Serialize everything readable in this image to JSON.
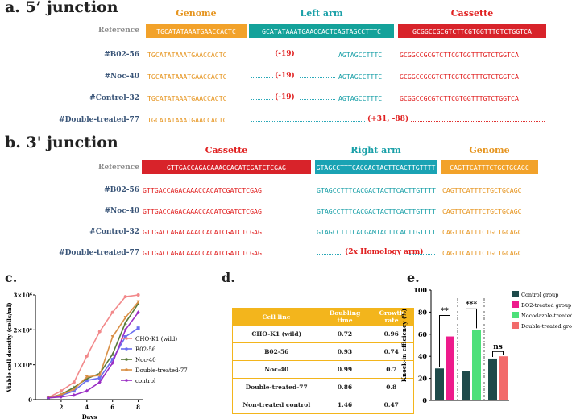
{
  "panel_a": {
    "title": "a. 5’ junction",
    "headers": {
      "genome": "Genome",
      "arm": "Left arm",
      "cassette": "Cassette"
    },
    "reference": {
      "label": "Reference",
      "genome": "TGCATATAAATGAACCACTC",
      "arm": "GCATATAAATGAACCACTCAGTAGCCTTTC",
      "cassette": "GCGGCCGCGTCTTCGTGGTTTGTCTGGTCA"
    },
    "rows": [
      {
        "label": "#B02-56",
        "genome": "TGCATATAAATGAACCACTC",
        "mutation": "(-19)",
        "arm_tail": "AGTAGCCTTTC",
        "cassette": "GCGGCCGCGTCTTCGTGGTTTGTCTGGTCA"
      },
      {
        "label": "#Noc-40",
        "genome": "TGCATATAAATGAACCACTC",
        "mutation": "(-19)",
        "arm_tail": "AGTAGCCTTTC",
        "cassette": "GCGGCCGCGTCTTCGTGGTTTGTCTGGTCA"
      },
      {
        "label": "#Control-32",
        "genome": "TGCATATAAATGAACCACTC",
        "mutation": "(-19)",
        "arm_tail": "AGTAGCCTTTC",
        "cassette": "GCGGCCGCGTCTTCGTGGTTTGTCTGGTCA"
      },
      {
        "label": "#Double-treated-77",
        "genome": "TGCATATAAATGAACCACTC",
        "mutation": "(+31, -88)",
        "arm_tail": "",
        "cassette": ""
      }
    ]
  },
  "panel_b": {
    "title": "b. 3' junction",
    "headers": {
      "cassette": "Cassette",
      "arm": "Right arm",
      "genome": "Genome"
    },
    "reference": {
      "label": "Reference",
      "cassette": "GTTGACCAGACAAACCACATCGATCTCGAG",
      "arm": "GTAGCCTTTCACGACTACTTCACTTGTTTT",
      "genome": "CAGTTCATTTCTGCTGCAGC"
    },
    "rows": [
      {
        "label": "#B02-56",
        "cassette": "GTTGACCAGACAAACCACATCGATCTCGAG",
        "arm": "GTAGCCTTTCACGACTACTTCACTTGTTTT",
        "genome": "CAGTTCATTTCTGCTGCAGC"
      },
      {
        "label": "#Noc-40",
        "cassette": "GTTGACCAGACAAACCACATCGATCTCGAG",
        "arm": "GTAGCCTTTCACGACTACTTCACTTGTTTT",
        "genome": "CAGTTCATTTCTGCTGCAGC"
      },
      {
        "label": "#Control-32",
        "cassette": "GTTGACCAGACAAACCACATCGATCTCGAG",
        "arm": "GTAGCCTTTCACGAMTACTTCACTTGTTTT",
        "genome": "CAGTTCATTTCTGCTGCAGC"
      },
      {
        "label": "#Double-treated-77",
        "cassette": "GTTGACCAGACAAACCACATCGATCTCGAG",
        "arm_note": "(2x Homology arm)",
        "genome": "CAGTTCATTTCTGCTGCAGC"
      }
    ]
  },
  "panel_c_label": "c.",
  "panel_d_label": "d.",
  "panel_e_label": "e.",
  "chart_data": [
    {
      "type": "line",
      "title": "",
      "xlabel": "Days",
      "ylabel": "Viable cell density (cells/ml)",
      "x": [
        1,
        2,
        3,
        4,
        5,
        6,
        7,
        8
      ],
      "xticks": [
        "2",
        "4",
        "6",
        "8"
      ],
      "yticks": [
        "0",
        "1×10⁶",
        "2×10⁶",
        "3×10⁶"
      ],
      "ylim": [
        0,
        3000000
      ],
      "series": [
        {
          "name": "CHO-K1 (wild)",
          "color": "#f2888a",
          "marker": "circle",
          "values": [
            60000,
            250000,
            500000,
            1250000,
            1950000,
            2500000,
            2950000,
            3000000
          ]
        },
        {
          "name": "B02-56",
          "color": "#6a6ef0",
          "marker": "square",
          "values": [
            50000,
            120000,
            250000,
            550000,
            620000,
            1150000,
            1800000,
            2050000
          ]
        },
        {
          "name": "Noc-40",
          "color": "#5a7a3a",
          "marker": "triangle",
          "values": [
            50000,
            150000,
            350000,
            600000,
            750000,
            1300000,
            2200000,
            2750000
          ]
        },
        {
          "name": "Double-treated-77",
          "color": "#d98f45",
          "marker": "triangle-down",
          "values": [
            50000,
            140000,
            300000,
            650000,
            700000,
            1800000,
            2350000,
            2800000
          ]
        },
        {
          "name": "control",
          "color": "#9a2ec4",
          "marker": "diamond",
          "values": [
            50000,
            80000,
            130000,
            250000,
            500000,
            1050000,
            2000000,
            2500000
          ]
        }
      ]
    },
    {
      "type": "table",
      "columns": [
        "Cell line",
        "Doubling time",
        "Growth rate"
      ],
      "rows": [
        [
          "CHO-K1 (wild)",
          "0.72",
          "0.96"
        ],
        [
          "B02-56",
          "0.93",
          "0.74"
        ],
        [
          "Noc-40",
          "0.99",
          "0.7"
        ],
        [
          "Double-treated-77",
          "0.86",
          "0.8"
        ],
        [
          "Non-treated control",
          "1.46",
          "0.47"
        ]
      ]
    },
    {
      "type": "bar",
      "ylabel": "Knock-in efficiency (%)",
      "ylim": [
        0,
        100
      ],
      "yticks": [
        "0",
        "20",
        "40",
        "60",
        "80",
        "100"
      ],
      "groups": [
        {
          "bars": [
            {
              "series": "Control group",
              "value": 29
            },
            {
              "series": "BO2-treated group",
              "value": 58
            }
          ],
          "significance": "**"
        },
        {
          "bars": [
            {
              "series": "Control group",
              "value": 27
            },
            {
              "series": "Nocodazole-treated group",
              "value": 64
            }
          ],
          "significance": "***"
        },
        {
          "bars": [
            {
              "series": "Control group",
              "value": 38
            },
            {
              "series": "Double-treated group",
              "value": 40
            }
          ],
          "significance": "ns"
        }
      ],
      "legend": [
        {
          "name": "Control group",
          "color": "#1e4a4a"
        },
        {
          "name": "BO2-treated group",
          "color": "#ee1b8c"
        },
        {
          "name": "Nocodazole-treated group",
          "color": "#4de07a"
        },
        {
          "name": "Double-treated group",
          "color": "#f26b6b"
        }
      ]
    }
  ]
}
